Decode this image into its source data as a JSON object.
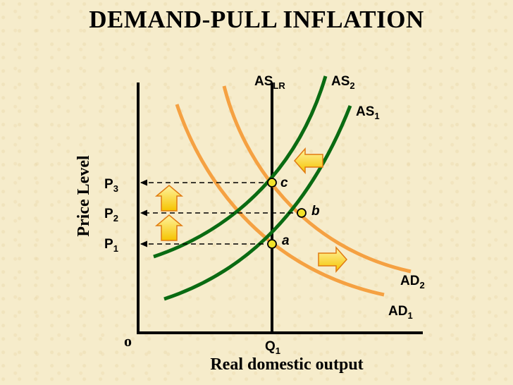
{
  "title": "DEMAND-PULL INFLATION",
  "axes": {
    "y_label": "Price Level",
    "x_label": "Real domestic output",
    "origin": "o"
  },
  "curves": {
    "as_lr": {
      "name": "AS",
      "sub": "LR"
    },
    "as_2": {
      "name": "AS",
      "sub": "2"
    },
    "as_1": {
      "name": "AS",
      "sub": "1"
    },
    "ad_2": {
      "name": "AD",
      "sub": "2"
    },
    "ad_1": {
      "name": "AD",
      "sub": "1"
    }
  },
  "price_levels": [
    {
      "name": "P",
      "sub": "3"
    },
    {
      "name": "P",
      "sub": "2"
    },
    {
      "name": "P",
      "sub": "1"
    }
  ],
  "quantity": {
    "name": "Q",
    "sub": "1"
  },
  "points": [
    "c",
    "b",
    "a"
  ],
  "colors": {
    "as_curves": "#0a6b12",
    "ad_curves": "#f5a142",
    "axis": "#000000",
    "point_fill": "#f2e22a",
    "arrow_fill": "#ffd21a",
    "arrow_stroke": "#e07a10"
  }
}
